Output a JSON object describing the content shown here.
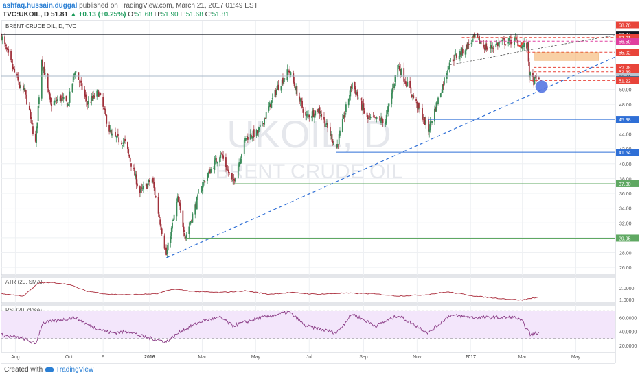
{
  "header": {
    "author": "ashfaq.hussain.duggal",
    "published_text": "published on TradingView.com, March 21, 2017 01:49 EST",
    "symbol": "TVC:UKOIL, D",
    "last": "51.81",
    "change": "+0.13 (+0.25%)",
    "o_label": "O:",
    "o": "51.68",
    "h_label": "H:",
    "h": "51.90",
    "l_label": "L:",
    "l": "51.68",
    "c_label": "C:",
    "c": "51.81"
  },
  "footer": {
    "created_with": "Created with",
    "brand": "TradingView"
  },
  "colors": {
    "up": "#3b8c5a",
    "down": "#a0313b",
    "red_line": "#e8443a",
    "blue": "#2f6fd6",
    "green": "#5fa862",
    "orange": "#f6b26b",
    "atr": "#b03a48",
    "rsi": "#8a3c86",
    "rsi_band": "#f3e6fb"
  },
  "chart_data": {
    "type": "candlestick",
    "title": "BRENT CRUDE OIL, D, TVC",
    "watermark_1": "UKOIL, D",
    "watermark_2": "BRENT CRUDE OIL",
    "y_ticks": [
      26.0,
      28.0,
      30.0,
      32.0,
      34.0,
      36.0,
      38.0,
      40.0,
      42.0,
      44.0,
      46.0,
      48.0,
      50.0
    ],
    "ylim": [
      25,
      59.3
    ],
    "x_labels": [
      "Aug",
      "Oct",
      "9",
      "2016",
      "Mar",
      "May",
      "Jul",
      "Sep",
      "Nov",
      "2017",
      "Mar",
      "May"
    ],
    "x_label_dates": [
      "2015-08-01",
      "2015-10-01",
      "2015-11-09",
      "2016-01-01",
      "2016-03-01",
      "2016-05-01",
      "2016-07-01",
      "2016-09-01",
      "2016-11-01",
      "2017-01-01",
      "2017-03-01",
      "2017-05-01"
    ],
    "x_range": [
      "2015-07-16",
      "2017-06-15"
    ],
    "price_anchors": [
      [
        "2015-07-16",
        57.2
      ],
      [
        "2015-07-28",
        53.2
      ],
      [
        "2015-08-07",
        50.1
      ],
      [
        "2015-08-12",
        49.6
      ],
      [
        "2015-08-24",
        42.7
      ],
      [
        "2015-08-31",
        54.2
      ],
      [
        "2015-09-10",
        48.0
      ],
      [
        "2015-09-21",
        48.8
      ],
      [
        "2015-09-30",
        48.0
      ],
      [
        "2015-10-08",
        52.7
      ],
      [
        "2015-10-22",
        48.1
      ],
      [
        "2015-11-04",
        49.6
      ],
      [
        "2015-11-18",
        43.8
      ],
      [
        "2015-12-04",
        42.8
      ],
      [
        "2015-12-21",
        36.1
      ],
      [
        "2016-01-04",
        37.9
      ],
      [
        "2016-01-20",
        27.7
      ],
      [
        "2016-02-02",
        35.2
      ],
      [
        "2016-02-11",
        30.1
      ],
      [
        "2016-03-01",
        37.2
      ],
      [
        "2016-03-22",
        41.5
      ],
      [
        "2016-04-05",
        37.3
      ],
      [
        "2016-04-20",
        43.6
      ],
      [
        "2016-05-04",
        44.2
      ],
      [
        "2016-05-26",
        50.3
      ],
      [
        "2016-06-08",
        52.6
      ],
      [
        "2016-06-27",
        46.3
      ],
      [
        "2016-07-12",
        47.3
      ],
      [
        "2016-08-01",
        42.1
      ],
      [
        "2016-08-19",
        50.9
      ],
      [
        "2016-09-05",
        46.0
      ],
      [
        "2016-09-26",
        45.8
      ],
      [
        "2016-10-10",
        53.3
      ],
      [
        "2016-10-28",
        48.9
      ],
      [
        "2016-11-14",
        44.6
      ],
      [
        "2016-11-30",
        50.5
      ],
      [
        "2016-12-08",
        53.8
      ],
      [
        "2016-12-22",
        55.1
      ],
      [
        "2017-01-06",
        57.0
      ],
      [
        "2017-01-20",
        55.5
      ],
      [
        "2017-02-06",
        56.4
      ],
      [
        "2017-02-21",
        56.6
      ],
      [
        "2017-03-01",
        55.9
      ],
      [
        "2017-03-07",
        55.8
      ],
      [
        "2017-03-09",
        52.0
      ],
      [
        "2017-03-14",
        51.1
      ],
      [
        "2017-03-20",
        51.8
      ]
    ],
    "price_labels": [
      {
        "text": "58.70",
        "value": 58.7,
        "color": "#e8443a",
        "style": "solid"
      },
      {
        "text": "57.44",
        "value": 57.44,
        "color": "#131722",
        "style": "dark"
      },
      {
        "text": "57.01",
        "value": 57.01,
        "color": "#e8443a",
        "style": "dashed"
      },
      {
        "text": "56.50",
        "value": 56.5,
        "color": "#e040a0",
        "style": "dashed"
      },
      {
        "text": "55.02",
        "value": 55.02,
        "color": "#e8443a",
        "style": "dashed"
      },
      {
        "text": "52.98",
        "value": 52.98,
        "color": "#e8443a",
        "style": "dashed"
      },
      {
        "text": "52.39",
        "value": 52.39,
        "color": "#e8443a",
        "style": "dashed"
      },
      {
        "text": "51.81",
        "value": 51.81,
        "color": "#a8b8c8",
        "style": "price"
      },
      {
        "text": "51.35",
        "value": 51.35,
        "color": "#4a6a8a",
        "style": "dashed"
      },
      {
        "text": "51.22",
        "value": 51.22,
        "color": "#e8443a",
        "style": "dashed"
      },
      {
        "text": "45.98",
        "value": 45.98,
        "color": "#2f6fd6",
        "style": "solid"
      },
      {
        "text": "41.54",
        "value": 41.54,
        "color": "#2f6fd6",
        "style": "solid"
      },
      {
        "text": "37.30",
        "value": 37.3,
        "color": "#5fa862",
        "style": "solid"
      },
      {
        "text": "29.95",
        "value": 29.95,
        "color": "#5fa862",
        "style": "solid"
      }
    ],
    "trendline": {
      "from": [
        "2016-01-20",
        27.3
      ],
      "to": [
        "2017-06-15",
        54.4
      ]
    },
    "atr": {
      "title": "ATR (20, SMA)",
      "ticks": [
        1.0,
        2.0
      ],
      "ylim": [
        0.7,
        2.95
      ],
      "anchors": [
        [
          "2015-07-16",
          1.5
        ],
        [
          "2015-08-10",
          1.3
        ],
        [
          "2015-08-28",
          2.45
        ],
        [
          "2015-09-15",
          2.45
        ],
        [
          "2015-10-01",
          2.3
        ],
        [
          "2015-10-20",
          1.75
        ],
        [
          "2015-11-15",
          1.45
        ],
        [
          "2015-12-10",
          1.4
        ],
        [
          "2016-01-10",
          1.5
        ],
        [
          "2016-01-28",
          1.9
        ],
        [
          "2016-02-20",
          1.7
        ],
        [
          "2016-03-20",
          1.6
        ],
        [
          "2016-04-20",
          1.75
        ],
        [
          "2016-05-15",
          1.45
        ],
        [
          "2016-06-10",
          1.6
        ],
        [
          "2016-07-10",
          1.45
        ],
        [
          "2016-08-10",
          1.55
        ],
        [
          "2016-09-10",
          1.5
        ],
        [
          "2016-10-10",
          1.3
        ],
        [
          "2016-11-10",
          1.4
        ],
        [
          "2016-12-05",
          1.65
        ],
        [
          "2016-12-20",
          1.5
        ],
        [
          "2017-01-10",
          1.25
        ],
        [
          "2017-02-10",
          1.05
        ],
        [
          "2017-03-01",
          0.95
        ],
        [
          "2017-03-14",
          1.15
        ],
        [
          "2017-03-20",
          1.2
        ]
      ]
    },
    "rsi": {
      "title": "RSI (20, close)",
      "ticks": [
        20.0,
        40.0,
        60.0
      ],
      "ylim": [
        10,
        78
      ],
      "band": [
        30,
        70
      ],
      "anchors": [
        [
          "2015-07-16",
          35
        ],
        [
          "2015-08-10",
          30
        ],
        [
          "2015-08-24",
          22
        ],
        [
          "2015-09-01",
          52
        ],
        [
          "2015-10-08",
          60
        ],
        [
          "2015-10-25",
          48
        ],
        [
          "2015-11-18",
          38
        ],
        [
          "2015-12-10",
          40
        ],
        [
          "2015-12-21",
          34
        ],
        [
          "2016-01-20",
          25
        ],
        [
          "2016-02-05",
          40
        ],
        [
          "2016-03-01",
          55
        ],
        [
          "2016-03-22",
          60
        ],
        [
          "2016-04-05",
          48
        ],
        [
          "2016-05-01",
          58
        ],
        [
          "2016-06-08",
          68
        ],
        [
          "2016-06-27",
          48
        ],
        [
          "2016-08-01",
          38
        ],
        [
          "2016-08-19",
          65
        ],
        [
          "2016-09-15",
          48
        ],
        [
          "2016-10-10",
          63
        ],
        [
          "2016-11-14",
          38
        ],
        [
          "2016-12-08",
          63
        ],
        [
          "2017-01-06",
          60
        ],
        [
          "2017-02-21",
          60
        ],
        [
          "2017-03-01",
          54
        ],
        [
          "2017-03-10",
          36
        ],
        [
          "2017-03-20",
          38
        ]
      ]
    }
  }
}
